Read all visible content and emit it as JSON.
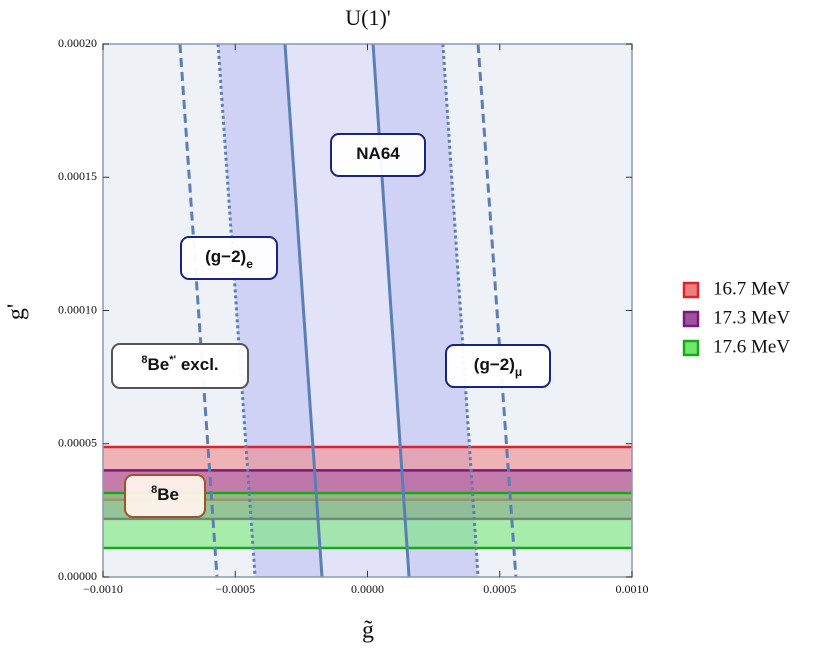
{
  "chart_data": {
    "type": "band",
    "title": "U(1)'",
    "xlabel": "g̃",
    "ylabel": "g'",
    "xlim": [
      -0.001,
      0.001
    ],
    "ylim": [
      0,
      0.0002
    ],
    "xticks": [
      {
        "value": -0.001,
        "label": "−0.0010"
      },
      {
        "value": -0.0005,
        "label": "−0.0005"
      },
      {
        "value": 0,
        "label": "0.0000"
      },
      {
        "value": 0.0005,
        "label": "0.0005"
      },
      {
        "value": 0.001,
        "label": "0.0010"
      }
    ],
    "yticks": [
      {
        "value": 0,
        "label": "0.00000"
      },
      {
        "value": 5e-05,
        "label": "0.00005"
      },
      {
        "value": 0.0001,
        "label": "0.00010"
      },
      {
        "value": 0.00015,
        "label": "0.00015"
      },
      {
        "value": 0.0002,
        "label": "0.00020"
      }
    ],
    "series": [
      {
        "name": "16.7 MeV",
        "color": "#e0202a",
        "fill": "#f08080",
        "values": [
          2.9e-05,
          4.88e-05
        ]
      },
      {
        "name": "17.3 MeV",
        "color": "#7a1a7a",
        "fill": "#a050a0",
        "values": [
          2.18e-05,
          4e-05
        ]
      },
      {
        "name": "17.6 MeV",
        "color": "#1aa81a",
        "fill": "#6fe86f",
        "values": [
          1.09e-05,
          3.15e-05
        ]
      }
    ],
    "lines": [
      {
        "x": [
          -0.000709,
          -0.000569
        ],
        "y": [
          0.0002,
          0
        ],
        "style": "dashed",
        "color": "#5b7fb5"
      },
      {
        "x": [
          -0.000565,
          -0.000425
        ],
        "y": [
          0.0002,
          0
        ],
        "style": "dotted",
        "color": "#5b7fb5"
      },
      {
        "x": [
          -0.000312,
          -0.000172
        ],
        "y": [
          0.0002,
          0
        ],
        "style": "solid",
        "color": "#5b7fb5"
      },
      {
        "x": [
          2.1e-05,
          0.000157
        ],
        "y": [
          0.0002,
          0
        ],
        "style": "solid",
        "color": "#5b7fb5"
      },
      {
        "x": [
          0.000285,
          0.000418
        ],
        "y": [
          0.0002,
          0
        ],
        "style": "dotted",
        "color": "#5b7fb5"
      },
      {
        "x": [
          0.000418,
          0.000561
        ],
        "y": [
          0.0002,
          0
        ],
        "style": "dashed",
        "color": "#5b7fb5"
      }
    ],
    "regions": [
      {
        "lines": [
          1,
          2
        ],
        "color": "#c9cdf5"
      },
      {
        "lines": [
          2,
          3
        ],
        "color": "#dfe1f8"
      },
      {
        "lines": [
          3,
          4
        ],
        "color": "#c9cdf5"
      }
    ],
    "annotations": [
      {
        "parts": [
          {
            "text": "NA64"
          }
        ],
        "border": "#1a237e"
      },
      {
        "parts": [
          {
            "text": "(g−2)"
          },
          {
            "text": "e",
            "shift": "sub"
          }
        ],
        "border": "#1a237e"
      },
      {
        "parts": [
          {
            "text": "8",
            "shift": "sup"
          },
          {
            "text": "Be"
          },
          {
            "text": "*'",
            "shift": "sup"
          },
          {
            "text": " excl."
          }
        ],
        "border": "#555555"
      },
      {
        "parts": [
          {
            "text": "(g−2)"
          },
          {
            "text": "μ",
            "shift": "sub"
          }
        ],
        "border": "#1a237e"
      },
      {
        "parts": [
          {
            "text": "8",
            "shift": "sup"
          },
          {
            "text": "Be"
          }
        ],
        "border": "#a0522d"
      }
    ]
  }
}
